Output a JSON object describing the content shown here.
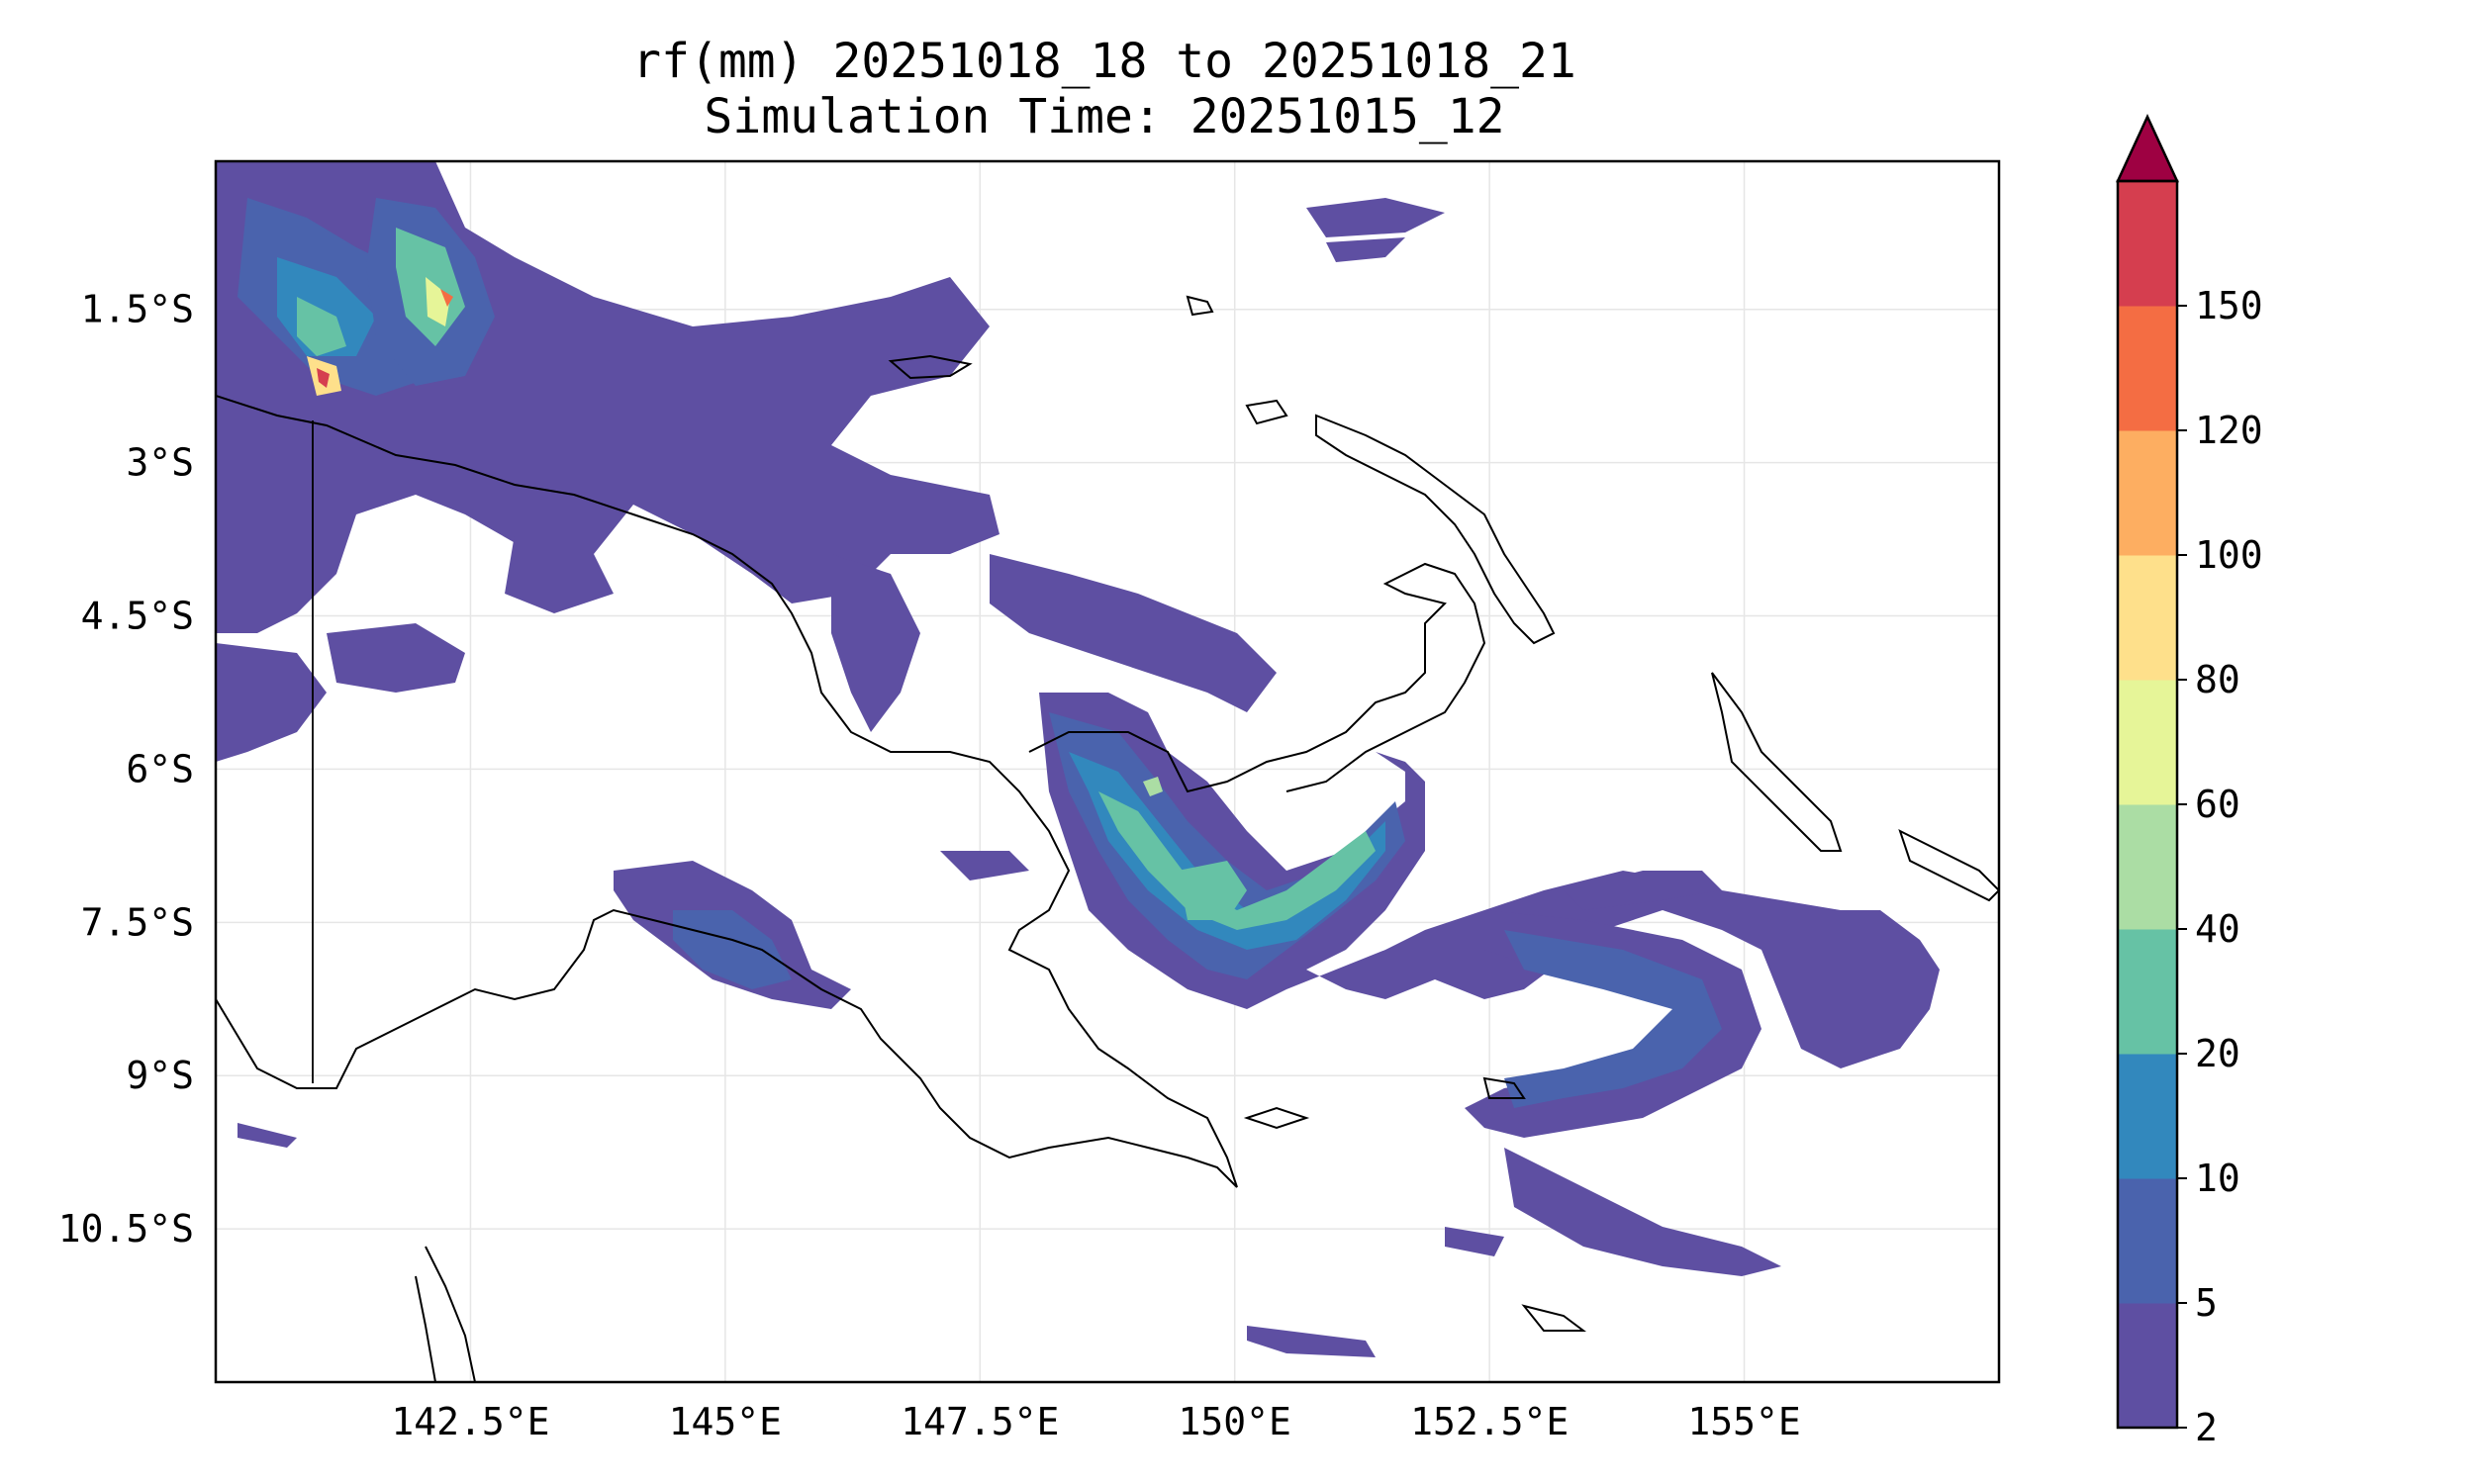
{
  "title_line1": "rf(mm) 20251018_18 to 20251018_21",
  "title_line2": "Simulation Time: 20251015_12",
  "map": {
    "lon_ticks": [
      "142.5°E",
      "145°E",
      "147.5°E",
      "150°E",
      "152.5°E",
      "155°E"
    ],
    "lon_values": [
      142.5,
      145,
      147.5,
      150,
      152.5,
      155
    ],
    "lat_ticks": [
      "1.5°S",
      "3°S",
      "4.5°S",
      "6°S",
      "7.5°S",
      "9°S",
      "10.5°S"
    ],
    "lat_values": [
      -1.5,
      -3,
      -4.5,
      -6,
      -7.5,
      -9,
      -10.5
    ],
    "lon_range": [
      140.0,
      157.5
    ],
    "lat_range": [
      -12.0,
      -0.05
    ],
    "gridlines": true
  },
  "colorbar": {
    "ticks": [
      "2",
      "5",
      "10",
      "20",
      "40",
      "60",
      "80",
      "100",
      "120",
      "150"
    ],
    "colors": [
      "#5e4fa2",
      "#4a63ad",
      "#3288bd",
      "#66c2a5",
      "#abdda4",
      "#e6f598",
      "#fee08b",
      "#fdae61",
      "#f46d43",
      "#d53e4f"
    ],
    "extend_color": "#9e0142",
    "extend": "max"
  }
}
